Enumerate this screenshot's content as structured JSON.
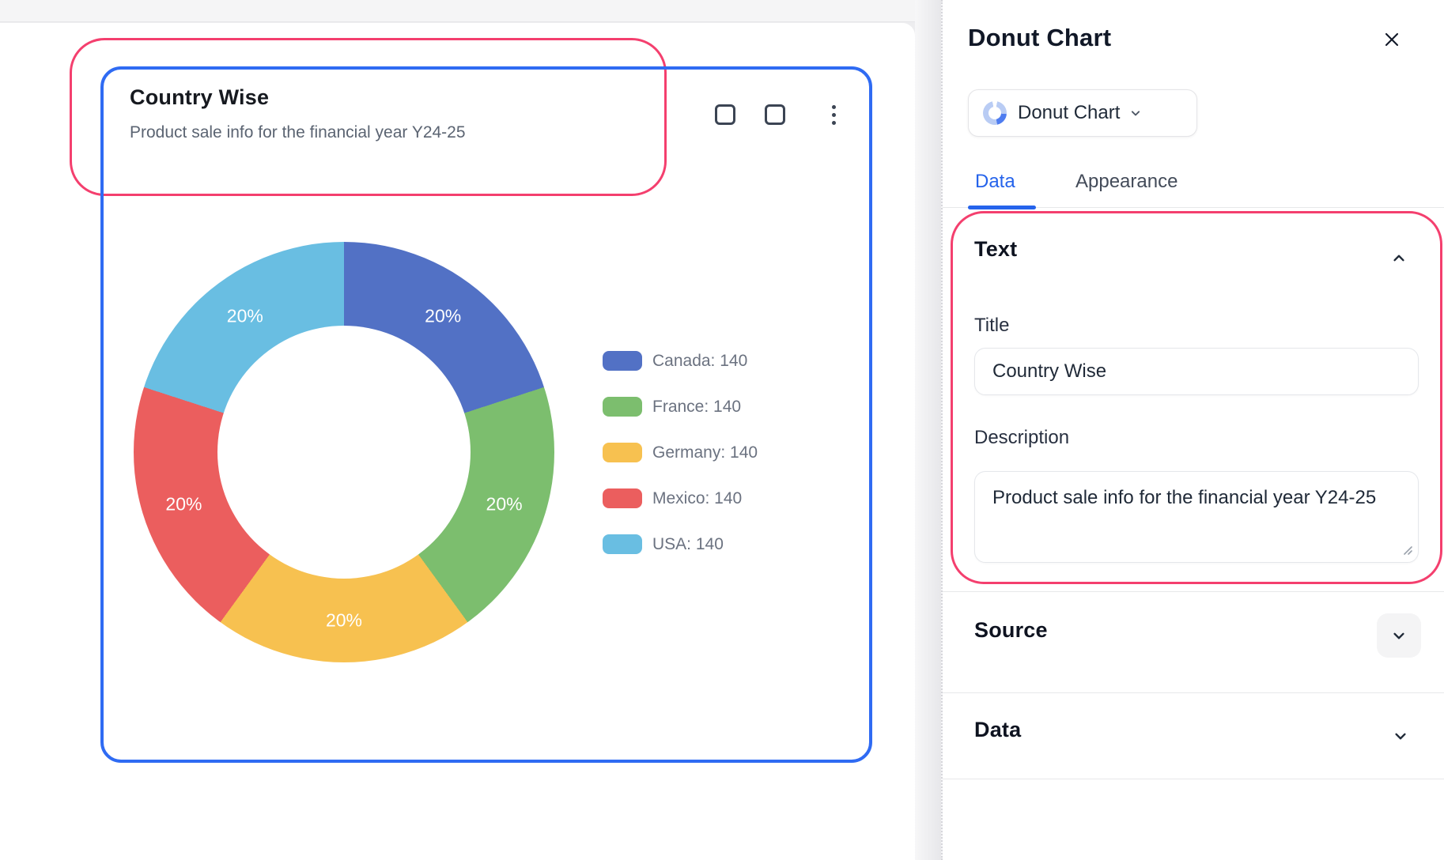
{
  "colors": {
    "selection_pink": "#F43F6E",
    "selection_blue": "#2F6BF3",
    "tab_active_blue": "#2563EB"
  },
  "canvas": {
    "card_title": "Country Wise",
    "card_subtitle": "Product sale info for the financial year Y24-25"
  },
  "chart_data": {
    "type": "donut",
    "title": "Country Wise",
    "subtitle": "Product sale info for the financial year Y24-25",
    "categories": [
      "Canada",
      "France",
      "Germany",
      "Mexico",
      "USA"
    ],
    "values": [
      140,
      140,
      140,
      140,
      140
    ],
    "percent_labels": [
      "20%",
      "20%",
      "20%",
      "20%",
      "20%"
    ],
    "colors": [
      "#5271C5",
      "#7CBE6E",
      "#F7C150",
      "#EB5E5E",
      "#69BEE2"
    ],
    "legend_labels": [
      "Canada: 140",
      "France: 140",
      "Germany: 140",
      "Mexico: 140",
      "USA: 140"
    ],
    "legend_position": "right",
    "inner_radius_ratio": 0.6,
    "start_angle_deg": 0
  },
  "panel": {
    "header_title": "Donut Chart",
    "type_selector_label": "Donut Chart",
    "tabs": {
      "data": "Data",
      "appearance": "Appearance"
    },
    "text_section": {
      "heading": "Text",
      "title_label": "Title",
      "title_value": "Country Wise",
      "description_label": "Description",
      "description_value": "Product sale info for the financial year Y24-25"
    },
    "source_section": {
      "heading": "Source"
    },
    "data_section": {
      "heading": "Data"
    }
  }
}
